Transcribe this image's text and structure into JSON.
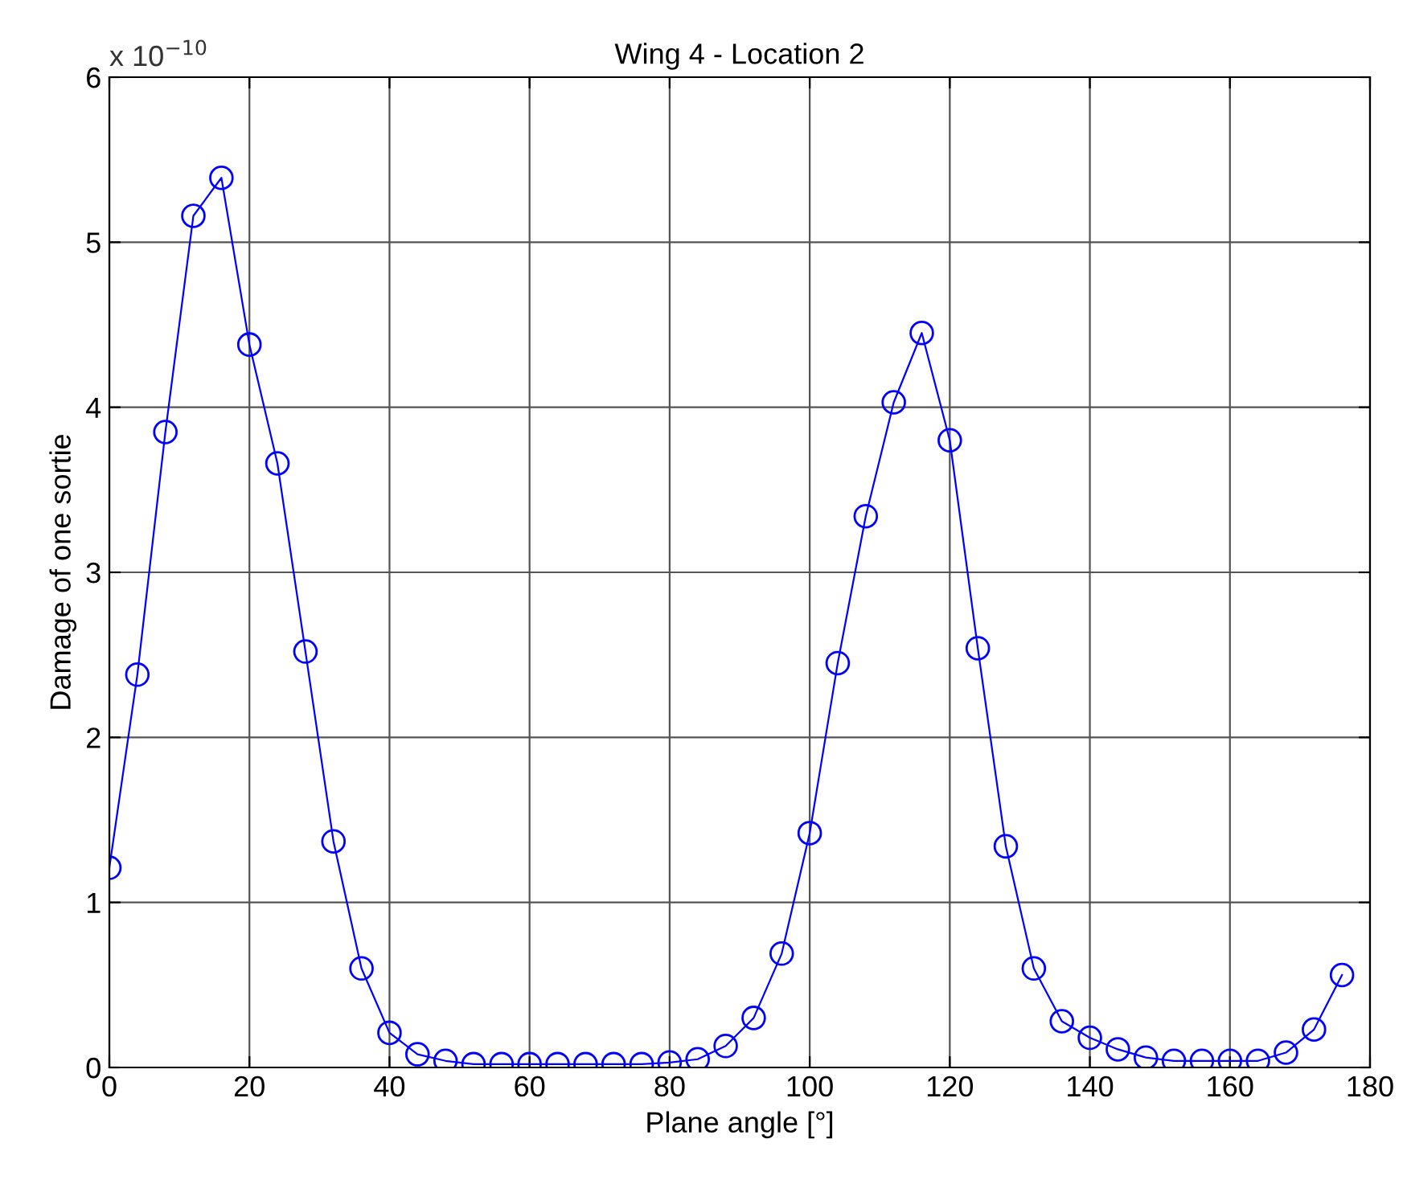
{
  "chart_data": {
    "type": "line",
    "title": "Wing 4 - Location 2",
    "xlabel": "Plane angle [°]",
    "ylabel": "Damage of one sortie",
    "annotations": [
      "x 10$^{−10}$"
    ],
    "x": [
      0,
      4,
      8,
      12,
      16,
      20,
      24,
      28,
      32,
      36,
      40,
      44,
      48,
      52,
      56,
      60,
      64,
      68,
      72,
      76,
      80,
      84,
      88,
      92,
      96,
      100,
      104,
      108,
      112,
      116,
      120,
      124,
      128,
      132,
      136,
      140,
      144,
      148,
      152,
      156,
      160,
      164,
      168,
      172,
      176
    ],
    "series": [
      {
        "color": "#0000ff",
        "values": [
          1.21,
          2.38,
          3.85,
          5.16,
          5.39,
          4.38,
          3.66,
          2.52,
          1.37,
          0.6,
          0.21,
          0.08,
          0.04,
          0.02,
          0.02,
          0.02,
          0.02,
          0.02,
          0.02,
          0.02,
          0.03,
          0.05,
          0.13,
          0.3,
          0.69,
          1.42,
          2.45,
          3.34,
          4.03,
          4.45,
          3.8,
          2.54,
          1.34,
          0.6,
          0.28,
          0.18,
          0.11,
          0.06,
          0.04,
          0.04,
          0.04,
          0.04,
          0.09,
          0.23,
          0.56
        ]
      }
    ],
    "xlim": [
      0,
      180
    ],
    "xticks": [
      0,
      20,
      40,
      60,
      80,
      100,
      120,
      140,
      160,
      180
    ],
    "ylim": [
      0,
      6
    ],
    "yticks": [
      0,
      1,
      2,
      3,
      4,
      5,
      6
    ],
    "grid": true,
    "marker": "circle",
    "line_style": "solid"
  }
}
